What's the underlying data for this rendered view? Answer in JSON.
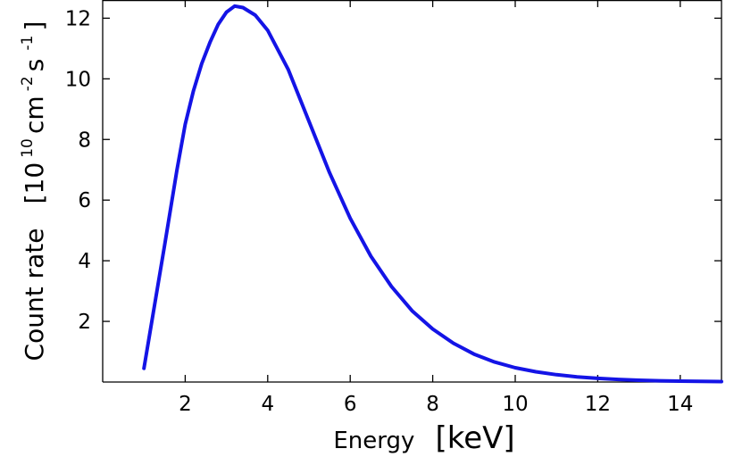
{
  "chart_data": {
    "type": "line",
    "title": "",
    "xlabel": {
      "main": "Energy",
      "unit": "[keV]"
    },
    "ylabel": {
      "main": "Count rate",
      "unit_open": "[10",
      "unit_exp1": "10",
      "unit_cm": "cm",
      "unit_exp2": "-2",
      "unit_s": "s",
      "unit_exp3": "-1",
      "unit_close": "]"
    },
    "xlim": [
      0.0,
      15.0
    ],
    "ylim": [
      0.0,
      12.6
    ],
    "xticks": [
      {
        "value": 2,
        "label": "2"
      },
      {
        "value": 4,
        "label": "4"
      },
      {
        "value": 6,
        "label": "6"
      },
      {
        "value": 8,
        "label": "8"
      },
      {
        "value": 10,
        "label": "10"
      },
      {
        "value": 12,
        "label": "12"
      },
      {
        "value": 14,
        "label": "14"
      }
    ],
    "yticks": [
      {
        "value": 2,
        "label": "2"
      },
      {
        "value": 4,
        "label": "4"
      },
      {
        "value": 6,
        "label": "6"
      },
      {
        "value": 8,
        "label": "8"
      },
      {
        "value": 10,
        "label": "10"
      },
      {
        "value": 12,
        "label": "12"
      }
    ],
    "grid": false,
    "line_color": "#1414e6",
    "series": [
      {
        "x": [
          1.0,
          1.5,
          1.8,
          2.0,
          2.2,
          2.4,
          2.6,
          2.8,
          3.0,
          3.2,
          3.4,
          3.7,
          4.0,
          4.5,
          5.0,
          5.5,
          6.0,
          6.5,
          7.0,
          7.5,
          8.0,
          8.5,
          9.0,
          9.5,
          10.0,
          10.5,
          11.0,
          11.5,
          12.0,
          12.5,
          13.0,
          13.5,
          14.0,
          14.5,
          15.0
        ],
        "y": [
          0.45,
          4.5,
          7.0,
          8.5,
          9.6,
          10.5,
          11.2,
          11.8,
          12.2,
          12.4,
          12.35,
          12.1,
          11.6,
          10.3,
          8.6,
          6.9,
          5.4,
          4.15,
          3.15,
          2.35,
          1.75,
          1.28,
          0.92,
          0.66,
          0.47,
          0.34,
          0.24,
          0.17,
          0.12,
          0.085,
          0.06,
          0.042,
          0.03,
          0.021,
          0.015
        ]
      }
    ]
  }
}
